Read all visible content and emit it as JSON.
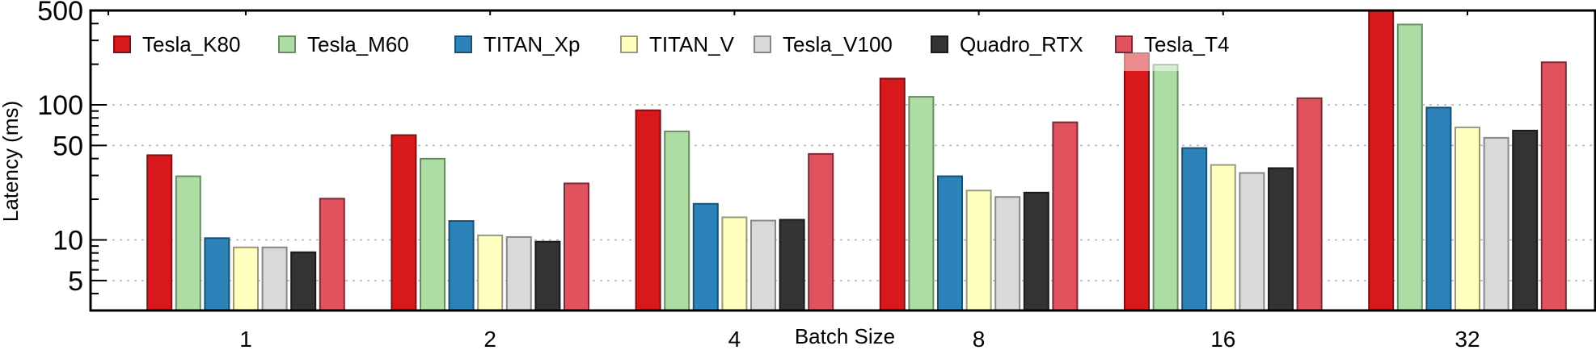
{
  "chart_data": {
    "type": "bar",
    "title": "",
    "xlabel": "Batch Size",
    "ylabel": "Latency (ms)",
    "yscale": "log",
    "ylim": [
      3,
      500
    ],
    "yticks": [
      5,
      10,
      50,
      100,
      500
    ],
    "ytick_labels": [
      "5",
      "10",
      "50",
      "100",
      "500"
    ],
    "grid": "horizontal dotted at major y ticks",
    "legend_position": "top",
    "categories": [
      "1",
      "2",
      "4",
      "8",
      "16",
      "32"
    ],
    "series": [
      {
        "name": "Tesla_K80",
        "color": "#d7191c",
        "edge": "#7a1214",
        "values": [
          42.4,
          59.7,
          91.2,
          156.6,
          241.4,
          500
        ]
      },
      {
        "name": "Tesla_M60",
        "color": "#addda3",
        "edge": "#6b8a66",
        "values": [
          29.6,
          39.9,
          63.6,
          114.7,
          198.4,
          393.7
        ]
      },
      {
        "name": "TITAN_Xp",
        "color": "#2b83ba",
        "edge": "#1a4f70",
        "values": [
          10.3,
          13.8,
          18.5,
          29.6,
          47.9,
          95.5
        ]
      },
      {
        "name": "TITAN_V",
        "color": "#ffffbf",
        "edge": "#9a9a7a",
        "values": [
          8.8,
          10.8,
          14.7,
          23.2,
          35.9,
          68.1
        ]
      },
      {
        "name": "Tesla_V100",
        "color": "#d9d9d9",
        "edge": "#888888",
        "values": [
          8.8,
          10.5,
          13.9,
          20.8,
          31.3,
          57.0
        ]
      },
      {
        "name": "Quadro_RTX",
        "color": "#333333",
        "edge": "#1a1a1a",
        "values": [
          8.1,
          9.7,
          14.1,
          22.4,
          34.0,
          64.5
        ]
      },
      {
        "name": "Tesla_T4",
        "color": "#e0525e",
        "edge": "#7d2a32",
        "values": [
          20.2,
          26.2,
          43.3,
          74.3,
          112.0,
          206.7
        ]
      }
    ],
    "notes": "Tesla_K80 at batch 32 is clipped at the top of the axis (>= 500)."
  }
}
